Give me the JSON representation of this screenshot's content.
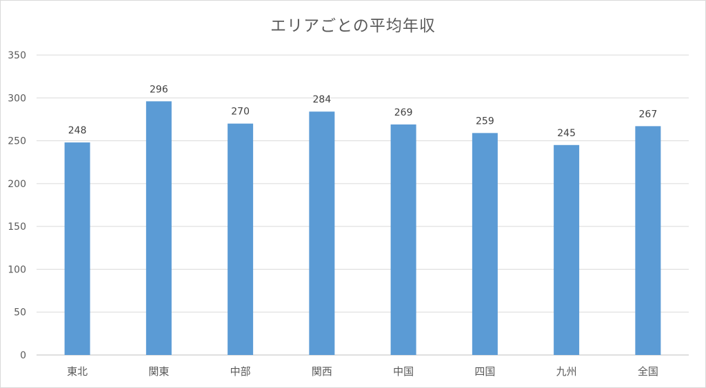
{
  "chart_data": {
    "type": "bar",
    "title": "エリアごとの平均年収",
    "xlabel": "",
    "ylabel": "",
    "categories": [
      "東北",
      "関東",
      "中部",
      "関西",
      "中国",
      "四国",
      "九州",
      "全国"
    ],
    "series": [
      {
        "values": [
          248,
          296,
          270,
          284,
          269,
          259,
          245,
          267
        ]
      }
    ],
    "ylim": [
      0,
      350
    ],
    "yticks": [
      0,
      50,
      100,
      150,
      200,
      250,
      300,
      350
    ],
    "grid": true,
    "data_labels": true,
    "bar_color": "#5b9bd5",
    "grid_color": "#d9d9d9",
    "text_color": "#595959"
  }
}
